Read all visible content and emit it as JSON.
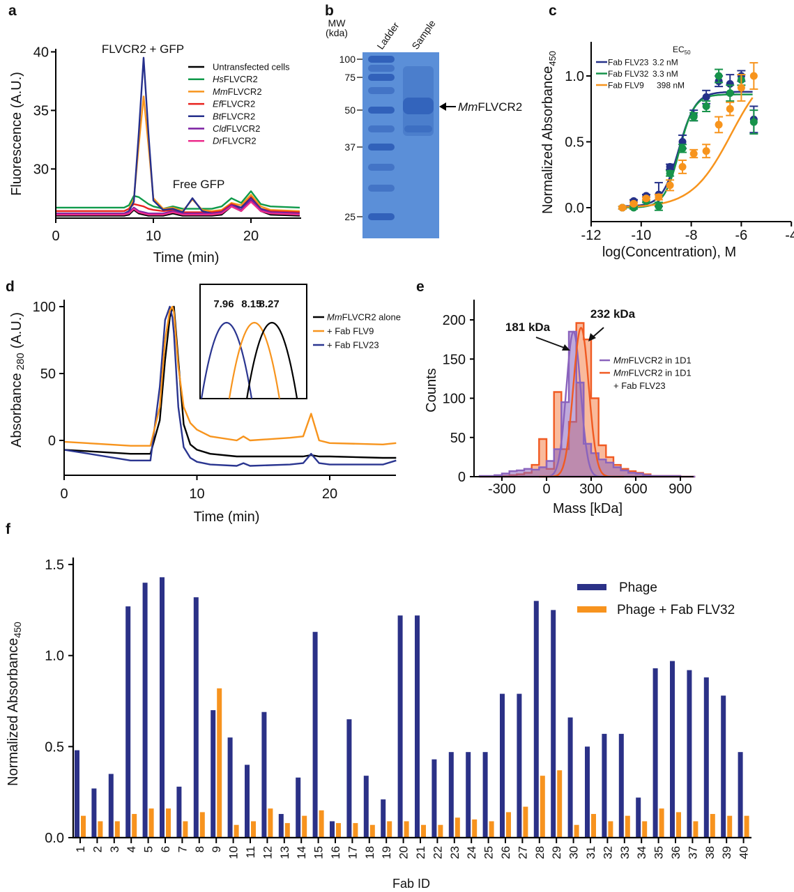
{
  "panel_labels": [
    "a",
    "b",
    "c",
    "d",
    "e",
    "f"
  ],
  "gel": {
    "mw_header": "MW",
    "mw_unit": "(kda)",
    "lanes": [
      "Ladder",
      "Sample"
    ],
    "mw_markers": [
      "100",
      "75",
      "50",
      "37",
      "25"
    ],
    "arrow_label_italic": "Mm",
    "arrow_label_rest": "FLVCR2",
    "gel_color": "#5b8fd8",
    "band_color": "#2f5fb8"
  },
  "chart_data": [
    {
      "panel": "a",
      "type": "line",
      "xlabel": "Time (min)",
      "ylabel": "Fluorescence (A.U.)",
      "xlim": [
        0,
        25
      ],
      "ylim": [
        25.8,
        40
      ],
      "xticks": [
        0,
        10,
        20
      ],
      "xtick_labels": [
        "0",
        "10",
        "20"
      ],
      "yticks": [
        30,
        35,
        40
      ],
      "ytick_labels": [
        "30",
        "35",
        "40"
      ],
      "annotations": [
        "FLVCR2 + GFP",
        "Free GFP"
      ],
      "legend_position": "top-right",
      "x": [
        0,
        6,
        7,
        7.5,
        8,
        8.5,
        9,
        9.5,
        10,
        11,
        12,
        13,
        14,
        15,
        16,
        17,
        18,
        19,
        20,
        21,
        22,
        25
      ],
      "series": [
        {
          "name_italic": "",
          "name": "Untransfected cells",
          "color": "#000000",
          "values": [
            26.0,
            26.0,
            26.0,
            26.1,
            26.5,
            26.2,
            26.1,
            26.0,
            26.0,
            26.0,
            26.2,
            26.0,
            26.0,
            26.0,
            26.0,
            26.1,
            26.8,
            26.4,
            27.3,
            26.4,
            26.1,
            26.0
          ]
        },
        {
          "name_italic": "Hs",
          "name": "FLVCR2",
          "color": "#0f9a4a",
          "values": [
            26.7,
            26.7,
            26.7,
            26.9,
            27.7,
            27.6,
            27.3,
            27.0,
            26.8,
            26.6,
            26.8,
            26.6,
            26.6,
            26.6,
            26.6,
            26.8,
            27.5,
            27.1,
            28.1,
            27.0,
            26.8,
            26.7
          ]
        },
        {
          "name_italic": "Mm",
          "name": "FLVCR2",
          "color": "#f7941d",
          "values": [
            26.4,
            26.4,
            26.4,
            26.6,
            27.4,
            32.0,
            36.2,
            32.0,
            27.5,
            26.6,
            26.7,
            26.4,
            27.4,
            26.5,
            26.4,
            26.5,
            27.1,
            26.9,
            27.8,
            26.8,
            26.5,
            26.4
          ]
        },
        {
          "name_italic": "Ef",
          "name": "FLVCR2",
          "color": "#e8231f",
          "values": [
            26.4,
            26.4,
            26.4,
            26.6,
            27.0,
            26.9,
            26.8,
            26.6,
            26.5,
            26.4,
            26.5,
            26.3,
            26.3,
            26.3,
            26.3,
            26.4,
            27.0,
            26.7,
            27.6,
            26.6,
            26.4,
            26.3
          ]
        },
        {
          "name_italic": "Bt",
          "name": "FLVCR2",
          "color": "#252f8c",
          "values": [
            26.2,
            26.2,
            26.2,
            26.4,
            27.2,
            33.0,
            39.5,
            33.0,
            27.3,
            26.5,
            26.6,
            26.3,
            27.5,
            26.4,
            26.2,
            26.3,
            26.9,
            26.7,
            27.5,
            26.6,
            26.3,
            26.2
          ]
        },
        {
          "name_italic": "Cld",
          "name": "FLVCR2",
          "color": "#7b1fa2",
          "values": [
            26.2,
            26.2,
            26.2,
            26.3,
            26.7,
            26.4,
            26.3,
            26.2,
            26.2,
            26.2,
            26.4,
            26.2,
            26.2,
            26.2,
            26.2,
            26.3,
            26.9,
            26.5,
            27.4,
            26.5,
            26.3,
            26.2
          ]
        },
        {
          "name_italic": "Dr",
          "name": "FLVCR2",
          "color": "#ec2d8c",
          "values": [
            26.1,
            26.1,
            26.1,
            26.2,
            26.6,
            26.3,
            26.2,
            26.1,
            26.1,
            26.1,
            26.3,
            26.1,
            26.1,
            26.1,
            26.1,
            26.2,
            26.8,
            26.4,
            27.2,
            26.4,
            26.2,
            26.1
          ]
        }
      ]
    },
    {
      "panel": "c",
      "type": "scatter",
      "xlabel": "log(Concentration), M",
      "ylabel": "Normalized Absorbance",
      "ylabel_sub": "450",
      "xlim": [
        -12,
        -4
      ],
      "ylim": [
        -0.1,
        1.2
      ],
      "xticks": [
        -12,
        -10,
        -8,
        -6,
        -4
      ],
      "xtick_labels": [
        "-12",
        "-10",
        "-8",
        "-6",
        "-4"
      ],
      "yticks": [
        0,
        0.5,
        1.0
      ],
      "ytick_labels": [
        "0.0",
        "0.5",
        "1.0"
      ],
      "legend_header": "EC",
      "legend_header_sub": "50",
      "legend_position": "top-left",
      "x": [
        -10.75,
        -10.3,
        -9.8,
        -9.3,
        -8.85,
        -8.35,
        -7.9,
        -7.4,
        -6.9,
        -6.45,
        -6.0,
        -5.5
      ],
      "series": [
        {
          "name": "Fab FLV23",
          "ec50_label": "3.2 nM",
          "ec50_nM": 3.2,
          "color": "#253189",
          "values": [
            0.0,
            0.05,
            0.09,
            0.1,
            0.31,
            0.5,
            0.7,
            0.84,
            0.96,
            0.94,
            1.0,
            0.67
          ],
          "errors": [
            0.01,
            0.01,
            0.01,
            0.09,
            0.02,
            0.05,
            0.04,
            0.05,
            0.04,
            0.07,
            0.04,
            0.1
          ]
        },
        {
          "name": "Fab FLV32",
          "ec50_label": "3.3 nM",
          "ec50_nM": 3.3,
          "color": "#17934a",
          "values": [
            0.0,
            0.0,
            0.05,
            0.01,
            0.26,
            0.45,
            0.69,
            0.77,
            1.0,
            0.87,
            0.97,
            0.65
          ],
          "errors": [
            0.01,
            0.01,
            0.01,
            0.03,
            0.02,
            0.03,
            0.03,
            0.04,
            0.05,
            0.06,
            0.04,
            0.09
          ]
        },
        {
          "name": "Fab FLV9",
          "ec50_label": "398 nM",
          "ec50_nM": 398,
          "color": "#f7941d",
          "values": [
            0.0,
            0.03,
            0.07,
            0.08,
            0.17,
            0.31,
            0.41,
            0.43,
            0.63,
            0.75,
            0.91,
            1.0
          ],
          "errors": [
            0.01,
            0.01,
            0.01,
            0.02,
            0.04,
            0.05,
            0.03,
            0.05,
            0.06,
            0.05,
            0.1,
            0.1
          ]
        }
      ]
    },
    {
      "panel": "d",
      "type": "line",
      "xlabel": "Time (min)",
      "ylabel": "Absorbance",
      "ylabel_sub": "280",
      "ylabel_suffix": "(A.U.)",
      "xlim": [
        0,
        25
      ],
      "ylim": [
        -26,
        105
      ],
      "xticks": [
        0,
        10,
        20
      ],
      "xtick_labels": [
        "0",
        "10",
        "20"
      ],
      "yticks": [
        0,
        50,
        100
      ],
      "ytick_labels": [
        "0",
        "50",
        "100"
      ],
      "legend_position": "top-right",
      "inset_peak_labels": [
        "7.96",
        "8.15",
        "8.27"
      ],
      "inset_peaks": [
        7.96,
        8.15,
        8.27
      ],
      "x": [
        0,
        5,
        6.5,
        7.2,
        7.6,
        7.96,
        8.15,
        8.27,
        8.6,
        9,
        9.5,
        10,
        11,
        13,
        13.5,
        14,
        17,
        18,
        18.6,
        19.2,
        20,
        24,
        25
      ],
      "series": [
        {
          "name_italic": "Mm",
          "name": "FLVCR2 alone",
          "color": "#000000",
          "values": [
            -7,
            -10,
            -10,
            15,
            60,
            92,
            99,
            100,
            60,
            12,
            -3,
            -7,
            -10,
            -12,
            -12,
            -12,
            -12,
            -12,
            -11,
            -12,
            -12,
            -13,
            -13
          ]
        },
        {
          "name_italic": "",
          "name": "+ Fab FLV9",
          "color": "#f7941d",
          "values": [
            -1,
            -4,
            -4,
            25,
            75,
            97,
            100,
            96,
            55,
            25,
            13,
            8,
            3,
            0,
            3,
            0,
            2,
            3,
            20,
            0,
            -2,
            -3,
            -2
          ]
        },
        {
          "name_italic": "",
          "name": "+ Fab FLV23",
          "color": "#2a3590",
          "values": [
            -7,
            -15,
            -15,
            40,
            90,
            100,
            92,
            80,
            25,
            -5,
            -13,
            -16,
            -18,
            -19,
            -17,
            -19,
            -18,
            -17,
            -10,
            -17,
            -18,
            -18,
            -15
          ]
        }
      ]
    },
    {
      "panel": "e",
      "type": "histogram",
      "xlabel": "Mass [kDa]",
      "ylabel": "Counts",
      "xlim": [
        -450,
        1000
      ],
      "ylim": [
        0,
        225
      ],
      "xticks": [
        -300,
        0,
        300,
        600,
        900
      ],
      "xtick_labels": [
        "-300",
        "0",
        "300",
        "600",
        "900"
      ],
      "yticks": [
        0,
        50,
        100,
        150,
        200
      ],
      "ytick_labels": [
        "0",
        "50",
        "100",
        "150",
        "200"
      ],
      "bin_edges": [
        -450,
        -400,
        -350,
        -300,
        -250,
        -200,
        -150,
        -100,
        -50,
        0,
        50,
        100,
        150,
        200,
        250,
        300,
        350,
        400,
        450,
        500,
        550,
        600,
        650,
        700,
        750,
        800,
        850,
        900,
        950,
        1000
      ],
      "legend_position": "right",
      "series": [
        {
          "name_italic": "Mm",
          "name": "FLVCR2 in 1D1",
          "name_line2": "",
          "peak_label": "181 kDa",
          "peak_kDa": 181,
          "color": "#8a63bd",
          "counts": [
            1,
            1,
            2,
            4,
            7,
            8,
            10,
            9,
            12,
            20,
            35,
            95,
            185,
            120,
            42,
            30,
            22,
            18,
            12,
            8,
            5,
            4,
            2,
            1,
            1,
            1,
            1,
            0,
            0
          ]
        },
        {
          "name_italic": "Mm",
          "name": "FLVCR2 in 1D1",
          "name_line2": "+ Fab FLV23",
          "peak_label": "232 kDa",
          "peak_kDa": 232,
          "color": "#f05a22",
          "counts": [
            0,
            0,
            0,
            1,
            2,
            3,
            5,
            15,
            48,
            10,
            108,
            35,
            70,
            196,
            175,
            100,
            40,
            25,
            15,
            10,
            7,
            5,
            3,
            1,
            1,
            1,
            1,
            0,
            0
          ]
        }
      ]
    },
    {
      "panel": "f",
      "type": "bar",
      "xlabel": "Fab ID",
      "ylabel": "Normalized Absorbance",
      "ylabel_sub": "450",
      "ylim": [
        0,
        1.5
      ],
      "yticks": [
        0,
        0.5,
        1.0,
        1.5
      ],
      "ytick_labels": [
        "0.0",
        "0.5",
        "1.0",
        "1.5"
      ],
      "legend_position": "top-right",
      "categories": [
        "1",
        "2",
        "3",
        "4",
        "5",
        "6",
        "7",
        "8",
        "9",
        "10",
        "11",
        "12",
        "13",
        "14",
        "15",
        "16",
        "17",
        "18",
        "19",
        "20",
        "21",
        "22",
        "23",
        "24",
        "25",
        "26",
        "27",
        "28",
        "29",
        "30",
        "31",
        "32",
        "33",
        "34",
        "35",
        "36",
        "37",
        "38",
        "39",
        "40"
      ],
      "series": [
        {
          "name": "Phage",
          "color": "#2b3187",
          "values": [
            0.48,
            0.27,
            0.35,
            1.27,
            1.4,
            1.43,
            0.28,
            1.32,
            0.7,
            0.55,
            0.4,
            0.69,
            0.13,
            0.33,
            1.13,
            0.09,
            0.65,
            0.34,
            0.21,
            1.22,
            1.22,
            0.43,
            0.47,
            0.47,
            0.47,
            0.79,
            0.79,
            1.3,
            1.25,
            0.66,
            0.5,
            0.57,
            0.57,
            0.22,
            0.93,
            0.97,
            0.92,
            0.88,
            0.78,
            0.47
          ]
        },
        {
          "name": "Phage + Fab FLV32",
          "color": "#f7931e",
          "values": [
            0.12,
            0.09,
            0.09,
            0.13,
            0.16,
            0.16,
            0.09,
            0.14,
            0.82,
            0.07,
            0.09,
            0.16,
            0.08,
            0.12,
            0.15,
            0.08,
            0.08,
            0.07,
            0.09,
            0.09,
            0.07,
            0.07,
            0.11,
            0.1,
            0.09,
            0.14,
            0.17,
            0.34,
            0.37,
            0.07,
            0.13,
            0.09,
            0.12,
            0.09,
            0.16,
            0.14,
            0.09,
            0.13,
            0.12,
            0.12
          ]
        }
      ]
    }
  ]
}
